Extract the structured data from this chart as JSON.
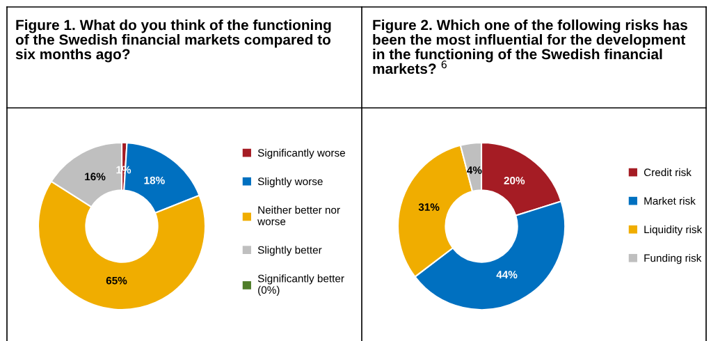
{
  "chart_data": [
    {
      "type": "donut",
      "title": "Figure 1. What do you think of the functioning of the Swedish financial markets compared to six months ago?",
      "categories": [
        "Significantly worse",
        "Slightly worse",
        "Neither better nor\nworse",
        "Slightly better",
        "Significantly better\n(0%)"
      ],
      "values": [
        1,
        18,
        65,
        16,
        0
      ],
      "colors": [
        "#a51c24",
        "#0070c0",
        "#f0ad00",
        "#bfbfbf",
        "#4f7d2a"
      ],
      "value_labels": [
        "1%",
        "18%",
        "65%",
        "16%",
        null
      ],
      "legend": "right"
    },
    {
      "type": "donut",
      "title": "Figure 2. Which one of the following risks has been the most influential for the development in the functioning of the Swedish financial markets? $^{6}$",
      "categories": [
        "Credit risk",
        "Market risk",
        "Liquidity risk",
        "Funding risk"
      ],
      "values": [
        20,
        44,
        31,
        4
      ],
      "colors": [
        "#a51c24",
        "#0070c0",
        "#f0ad00",
        "#bfbfbf"
      ],
      "value_labels": [
        "20%",
        "44%",
        "31%",
        "4%"
      ],
      "legend": "right"
    }
  ]
}
